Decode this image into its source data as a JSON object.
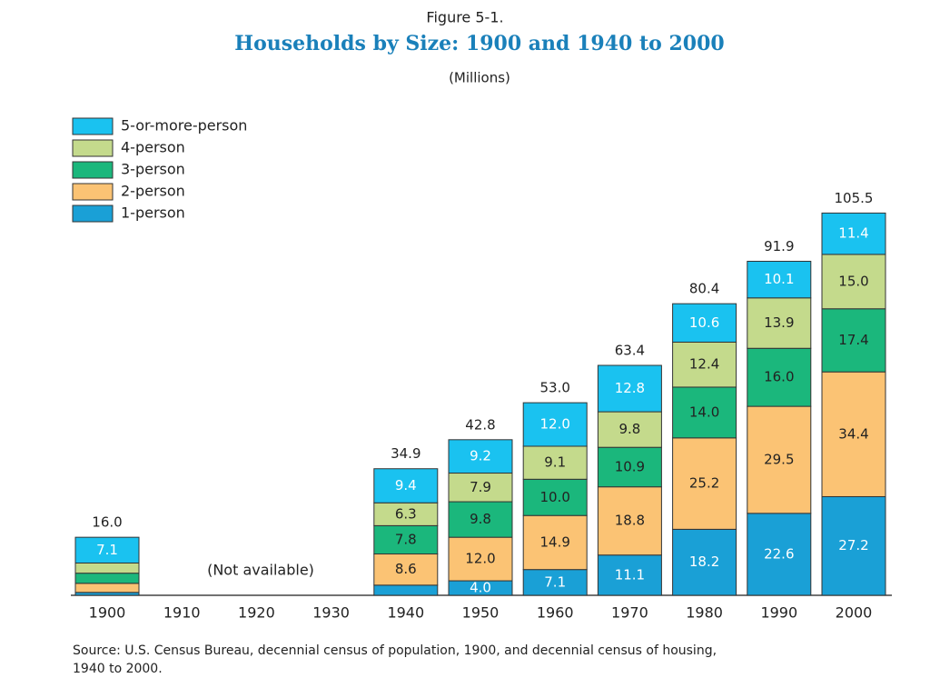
{
  "chart_data": {
    "type": "stacked_bar",
    "figure_label": "Figure 5-1.",
    "title": "Households by Size:  1900 and 1940 to 2000",
    "subtitle": "(Millions)",
    "annotation": "(Not available)",
    "source": [
      "Source:  U.S. Census Bureau, decennial census of population, 1900, and decennial census of housing,",
      "1940 to 2000."
    ],
    "categories": [
      "1900",
      "1910",
      "1920",
      "1930",
      "1940",
      "1950",
      "1960",
      "1970",
      "1980",
      "1990",
      "2000"
    ],
    "series": [
      {
        "name": "1-person",
        "color": "#1aa0d6",
        "values": [
          0.8,
          null,
          null,
          null,
          2.8,
          4.0,
          7.1,
          11.1,
          18.2,
          22.6,
          27.2
        ],
        "value_labels": [
          null,
          null,
          null,
          null,
          null,
          "4.0",
          "7.1",
          "11.1",
          "18.2",
          "22.6",
          "27.2"
        ]
      },
      {
        "name": "2-person",
        "color": "#fbc374",
        "values": [
          2.5,
          null,
          null,
          null,
          8.6,
          12.0,
          14.9,
          18.8,
          25.2,
          29.5,
          34.4
        ],
        "value_labels": [
          null,
          null,
          null,
          null,
          "8.6",
          "12.0",
          "14.9",
          "18.8",
          "25.2",
          "29.5",
          "34.4"
        ]
      },
      {
        "name": "3-person",
        "color": "#1bb77c",
        "values": [
          2.8,
          null,
          null,
          null,
          7.8,
          9.8,
          10.0,
          10.9,
          14.0,
          16.0,
          17.4
        ],
        "value_labels": [
          null,
          null,
          null,
          null,
          "7.8",
          "9.8",
          "10.0",
          "10.9",
          "14.0",
          "16.0",
          "17.4"
        ]
      },
      {
        "name": "4-person",
        "color": "#c4da8c",
        "values": [
          2.8,
          null,
          null,
          null,
          6.3,
          7.9,
          9.1,
          9.8,
          12.4,
          13.9,
          15.0
        ],
        "value_labels": [
          null,
          null,
          null,
          null,
          "6.3",
          "7.9",
          "9.1",
          "9.8",
          "12.4",
          "13.9",
          "15.0"
        ]
      },
      {
        "name": "5-or-more-person",
        "color": "#1ac2f0",
        "values": [
          7.1,
          null,
          null,
          null,
          9.4,
          9.2,
          12.0,
          12.8,
          10.6,
          10.1,
          11.4
        ],
        "value_labels": [
          "7.1",
          null,
          null,
          null,
          "9.4",
          "9.2",
          "12.0",
          "12.8",
          "10.6",
          "10.1",
          "11.4"
        ]
      }
    ],
    "totals": {
      "values": [
        16.0,
        null,
        null,
        null,
        34.9,
        42.8,
        53.0,
        63.4,
        80.4,
        91.9,
        105.5
      ],
      "value_labels": [
        "16.0",
        null,
        null,
        null,
        "34.9",
        "42.8",
        "53.0",
        "63.4",
        "80.4",
        "91.9",
        "105.5"
      ]
    }
  }
}
